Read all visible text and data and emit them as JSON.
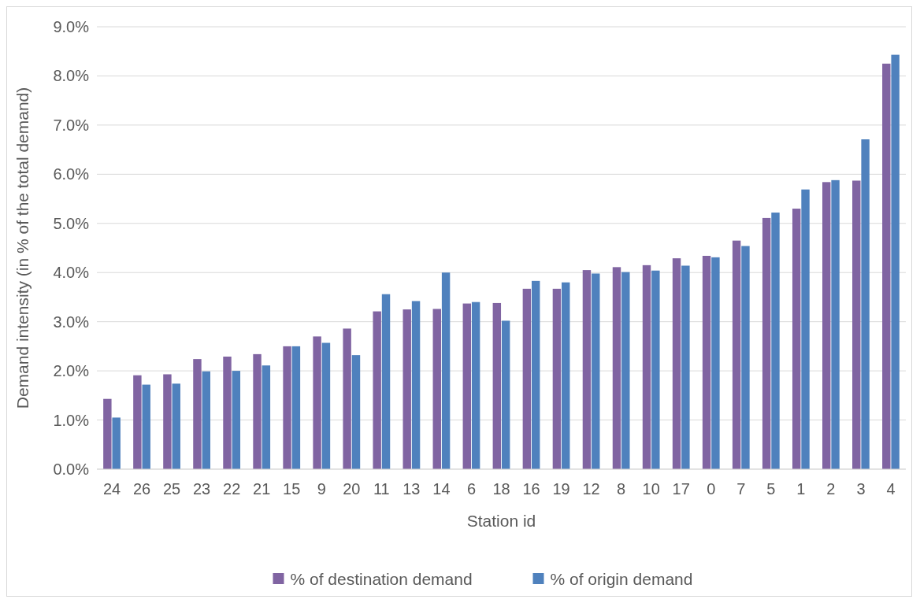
{
  "chart_data": {
    "type": "bar",
    "xlabel": "Station id",
    "ylabel": "Demand intensity (in % of the total demand)",
    "categories": [
      "24",
      "26",
      "25",
      "23",
      "22",
      "21",
      "15",
      "9",
      "20",
      "11",
      "13",
      "14",
      "6",
      "18",
      "16",
      "19",
      "12",
      "8",
      "10",
      "17",
      "0",
      "7",
      "5",
      "1",
      "2",
      "3",
      "4"
    ],
    "series": [
      {
        "name": "% of destination demand",
        "color": "#8064a2",
        "values": [
          1.43,
          1.91,
          1.93,
          2.24,
          2.29,
          2.34,
          2.5,
          2.7,
          2.86,
          3.21,
          3.25,
          3.26,
          3.37,
          3.38,
          3.67,
          3.67,
          4.05,
          4.11,
          4.15,
          4.29,
          4.34,
          4.65,
          5.11,
          5.3,
          5.84,
          5.87,
          8.25
        ]
      },
      {
        "name": "% of origin demand",
        "color": "#4f81bd",
        "values": [
          1.05,
          1.72,
          1.74,
          1.99,
          2.0,
          2.11,
          2.5,
          2.57,
          2.32,
          3.56,
          3.42,
          4.0,
          3.4,
          3.02,
          3.83,
          3.8,
          3.98,
          4.01,
          4.04,
          4.14,
          4.31,
          4.54,
          5.22,
          5.69,
          5.88,
          6.71,
          8.43
        ]
      }
    ],
    "ylim": [
      0,
      9
    ],
    "yticks": [
      {
        "value": 0,
        "label": "0.0%"
      },
      {
        "value": 1,
        "label": "1.0%"
      },
      {
        "value": 2,
        "label": "2.0%"
      },
      {
        "value": 3,
        "label": "3.0%"
      },
      {
        "value": 4,
        "label": "4.0%"
      },
      {
        "value": 5,
        "label": "5.0%"
      },
      {
        "value": 6,
        "label": "6.0%"
      },
      {
        "value": 7,
        "label": "7.0%"
      },
      {
        "value": 8,
        "label": "8.0%"
      },
      {
        "value": 9,
        "label": "9.0%"
      }
    ],
    "grid": "y",
    "legend": "bottom"
  }
}
